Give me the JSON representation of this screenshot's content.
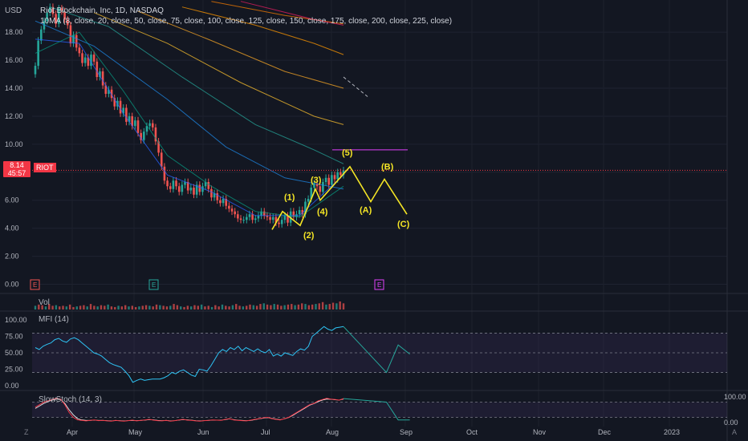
{
  "header": {
    "currency": "USD",
    "symbol_line": "Riot Blockchain, Inc, 1D, NASDAQ",
    "ma_line": "10MA (8, close, 20, close, 50, close, 75, close, 100, close, 125, close, 150, close, 175, close, 200, close, 225, close)"
  },
  "price_badge": {
    "price": "8.14",
    "timer": "45:57",
    "symbol": "RIOT"
  },
  "indicators": {
    "volume_label": "Vol",
    "mfi_label": "MFI (14)",
    "stoch_label": "SlowStoch (14, 3)"
  },
  "colors": {
    "background": "#131722",
    "up": "#26a69a",
    "down": "#ef5350",
    "wave": "#f5e625",
    "last_price": "#f23645",
    "mfi": "#2ec4f5",
    "stoch_k": "#f23645",
    "stoch_d": "#ffffff",
    "projection": "#26a69a",
    "target_line": "#e040fb"
  },
  "chart_data": [
    {
      "type": "candlestick",
      "title": "Riot Blockchain, Inc, 1D, NASDAQ",
      "y_ticks": [
        "18.00",
        "16.00",
        "14.00",
        "12.00",
        "10.00",
        "8.00",
        "6.00",
        "4.00",
        "2.00",
        "0.00"
      ],
      "ylim": [
        -0.6,
        20.3
      ],
      "x_ticks": [
        "Apr",
        "May",
        "Jun",
        "Jul",
        "Aug",
        "Sep",
        "Oct",
        "Nov",
        "Dec",
        "2023"
      ],
      "last_price": 8.14,
      "target_level": 9.6,
      "closes": [
        15.6,
        17.4,
        18.2,
        18.8,
        19.4,
        19.8,
        19.3,
        18.6,
        19.7,
        19.5,
        18.9,
        18.5,
        17.2,
        17.8,
        16.9,
        16.5,
        15.8,
        16.2,
        15.6,
        16.4,
        15.9,
        14.8,
        15.2,
        14.2,
        13.6,
        13.9,
        13.3,
        12.7,
        13.1,
        12.2,
        12.6,
        11.6,
        12.0,
        11.3,
        11.7,
        10.8,
        10.3,
        10.9,
        11.3,
        11.5,
        11.2,
        10.2,
        9.4,
        8.4,
        7.4,
        7.0,
        6.8,
        7.4,
        7.0,
        6.6,
        7.1,
        7.3,
        6.7,
        6.9,
        6.4,
        7.1,
        6.6,
        7.0,
        7.3,
        6.8,
        6.2,
        6.5,
        6.0,
        5.8,
        6.1,
        5.6,
        5.4,
        5.2,
        5.0,
        4.7,
        4.6,
        4.6,
        4.8,
        5.0,
        4.6,
        4.7,
        4.9,
        5.2,
        4.9,
        4.8,
        4.6,
        4.8,
        4.4,
        4.3,
        4.6,
        4.9,
        4.4,
        5.2,
        4.8,
        5.0,
        5.3,
        5.0,
        5.9,
        6.1,
        6.9,
        7.2,
        7.0,
        6.6,
        7.3,
        7.6,
        7.1,
        7.8,
        7.5,
        8.0,
        7.8,
        8.14
      ],
      "moving_averages": [
        {
          "name": "8",
          "values": [
            [
              0,
              17.5
            ],
            [
              15,
              17.2
            ],
            [
              30,
              12.2
            ],
            [
              45,
              7.8
            ],
            [
              60,
              6.6
            ],
            [
              75,
              4.9
            ],
            [
              90,
              4.9
            ],
            [
              105,
              7.8
            ]
          ]
        },
        {
          "name": "20",
          "values": [
            [
              0,
              16.5
            ],
            [
              15,
              18.0
            ],
            [
              30,
              13.8
            ],
            [
              45,
              9.2
            ],
            [
              60,
              7.0
            ],
            [
              75,
              5.2
            ],
            [
              90,
              4.8
            ],
            [
              105,
              7.0
            ]
          ]
        },
        {
          "name": "50",
          "values": [
            [
              0,
              18.8
            ],
            [
              20,
              17.0
            ],
            [
              45,
              13.2
            ],
            [
              65,
              9.8
            ],
            [
              85,
              7.6
            ],
            [
              105,
              6.8
            ]
          ]
        },
        {
          "name": "75",
          "values": [
            [
              5,
              19.8
            ],
            [
              25,
              18.4
            ],
            [
              50,
              14.8
            ],
            [
              75,
              11.4
            ],
            [
              95,
              9.6
            ],
            [
              105,
              8.6
            ]
          ]
        },
        {
          "name": "100",
          "values": [
            [
              20,
              19.4
            ],
            [
              45,
              17.2
            ],
            [
              70,
              14.4
            ],
            [
              95,
              12.0
            ],
            [
              105,
              11.4
            ]
          ]
        },
        {
          "name": "125",
          "values": [
            [
              35,
              19.5
            ],
            [
              60,
              17.4
            ],
            [
              85,
              15.2
            ],
            [
              105,
              14.0
            ]
          ]
        },
        {
          "name": "150",
          "values": [
            [
              50,
              19.8
            ],
            [
              75,
              18.5
            ],
            [
              95,
              17.2
            ],
            [
              105,
              16.4
            ]
          ]
        },
        {
          "name": "175",
          "values": [
            [
              60,
              20.2
            ],
            [
              85,
              19.2
            ],
            [
              105,
              18.6
            ]
          ]
        },
        {
          "name": "200",
          "values": [
            [
              70,
              20.2
            ],
            [
              95,
              18.9
            ],
            [
              105,
              18.5
            ]
          ]
        }
      ],
      "wave_points": [
        {
          "label": "(1)",
          "price": 5.2
        },
        {
          "label": "(2)",
          "price": 4.2
        },
        {
          "label": "(3)",
          "price": 6.8
        },
        {
          "label": "(4)",
          "price": 6.0
        },
        {
          "label": "(5)",
          "price": 8.4
        },
        {
          "label": "(A)",
          "price": 5.9
        },
        {
          "label": "(B)",
          "price": 7.5
        },
        {
          "label": "(C)",
          "price": 5.0
        }
      ]
    },
    {
      "type": "bar",
      "title": "Vol",
      "values": [
        6,
        8,
        7,
        5,
        9,
        6,
        7,
        5,
        6,
        5,
        8,
        4,
        5,
        6,
        7,
        5,
        9,
        6,
        5,
        7,
        6,
        8,
        5,
        4,
        6,
        5,
        7,
        5,
        6,
        4,
        5,
        6,
        7,
        6,
        5,
        8,
        7,
        6,
        5,
        6,
        9,
        7,
        5,
        4,
        6,
        5,
        7,
        6,
        8,
        5,
        6,
        4,
        7,
        5,
        8,
        6,
        5,
        7,
        9,
        6,
        5,
        6,
        8,
        7,
        6,
        9,
        10,
        8,
        7,
        9,
        8,
        6,
        7,
        8,
        9,
        7,
        8,
        10,
        9,
        7,
        8,
        9,
        10,
        12,
        8,
        9,
        11,
        10,
        13,
        10
      ]
    },
    {
      "type": "line",
      "title": "MFI (14)",
      "y_ticks": [
        "100.00",
        "75.00",
        "50.00",
        "25.00",
        "0.00"
      ],
      "ylim": [
        -5,
        105
      ],
      "bands": [
        80,
        20
      ],
      "values": [
        58,
        55,
        60,
        63,
        65,
        70,
        72,
        68,
        66,
        71,
        73,
        70,
        65,
        60,
        55,
        50,
        48,
        45,
        40,
        35,
        32,
        30,
        28,
        22,
        15,
        5,
        8,
        10,
        8,
        9,
        10,
        10,
        10,
        12,
        15,
        20,
        18,
        22,
        24,
        20,
        16,
        14,
        25,
        24,
        22,
        30,
        40,
        50,
        55,
        52,
        58,
        55,
        60,
        53,
        58,
        55,
        52,
        56,
        52,
        50,
        55,
        45,
        48,
        45,
        50,
        48,
        46,
        52,
        56,
        54,
        60,
        75,
        80,
        85,
        90,
        86,
        84,
        88,
        89,
        90
      ],
      "projection": [
        [
          90,
          20
        ],
        [
          93,
          62
        ],
        [
          96,
          48
        ]
      ]
    },
    {
      "type": "line",
      "title": "SlowStoch (14, 3)",
      "y_ticks": [
        "100.00",
        "0.00"
      ],
      "ylim": [
        -10,
        110
      ],
      "bands": [
        80,
        20
      ],
      "k": [
        60,
        70,
        80,
        85,
        90,
        95,
        92,
        70,
        40,
        20,
        10,
        8,
        6,
        8,
        10,
        7,
        8,
        6,
        5,
        8,
        6,
        5,
        7,
        9,
        6,
        8,
        10,
        12,
        9,
        7,
        6,
        8,
        5,
        7,
        10,
        12,
        9,
        8,
        6,
        5,
        7,
        8,
        10,
        9,
        8,
        12,
        15,
        10,
        8,
        7,
        6,
        9,
        12,
        15,
        18,
        20,
        15,
        12,
        10,
        15,
        20,
        30,
        40,
        50,
        60,
        70,
        75,
        85,
        90,
        95,
        92,
        90,
        88,
        94
      ],
      "d": [
        55,
        65,
        75,
        82,
        88,
        92,
        90,
        75,
        50,
        30,
        15,
        10,
        8,
        8,
        9,
        8,
        8,
        7,
        6,
        7,
        7,
        6,
        7,
        8,
        7,
        8,
        9,
        11,
        10,
        8,
        7,
        8,
        6,
        7,
        9,
        11,
        10,
        9,
        7,
        6,
        7,
        8,
        9,
        9,
        9,
        11,
        14,
        11,
        9,
        8,
        7,
        8,
        11,
        14,
        17,
        19,
        16,
        13,
        11,
        14,
        19,
        28,
        38,
        48,
        58,
        68,
        74,
        82,
        88,
        92,
        91,
        89,
        88,
        92
      ],
      "projection": [
        [
          90,
          80
        ],
        [
          93,
          10
        ],
        [
          96,
          10
        ]
      ]
    }
  ]
}
